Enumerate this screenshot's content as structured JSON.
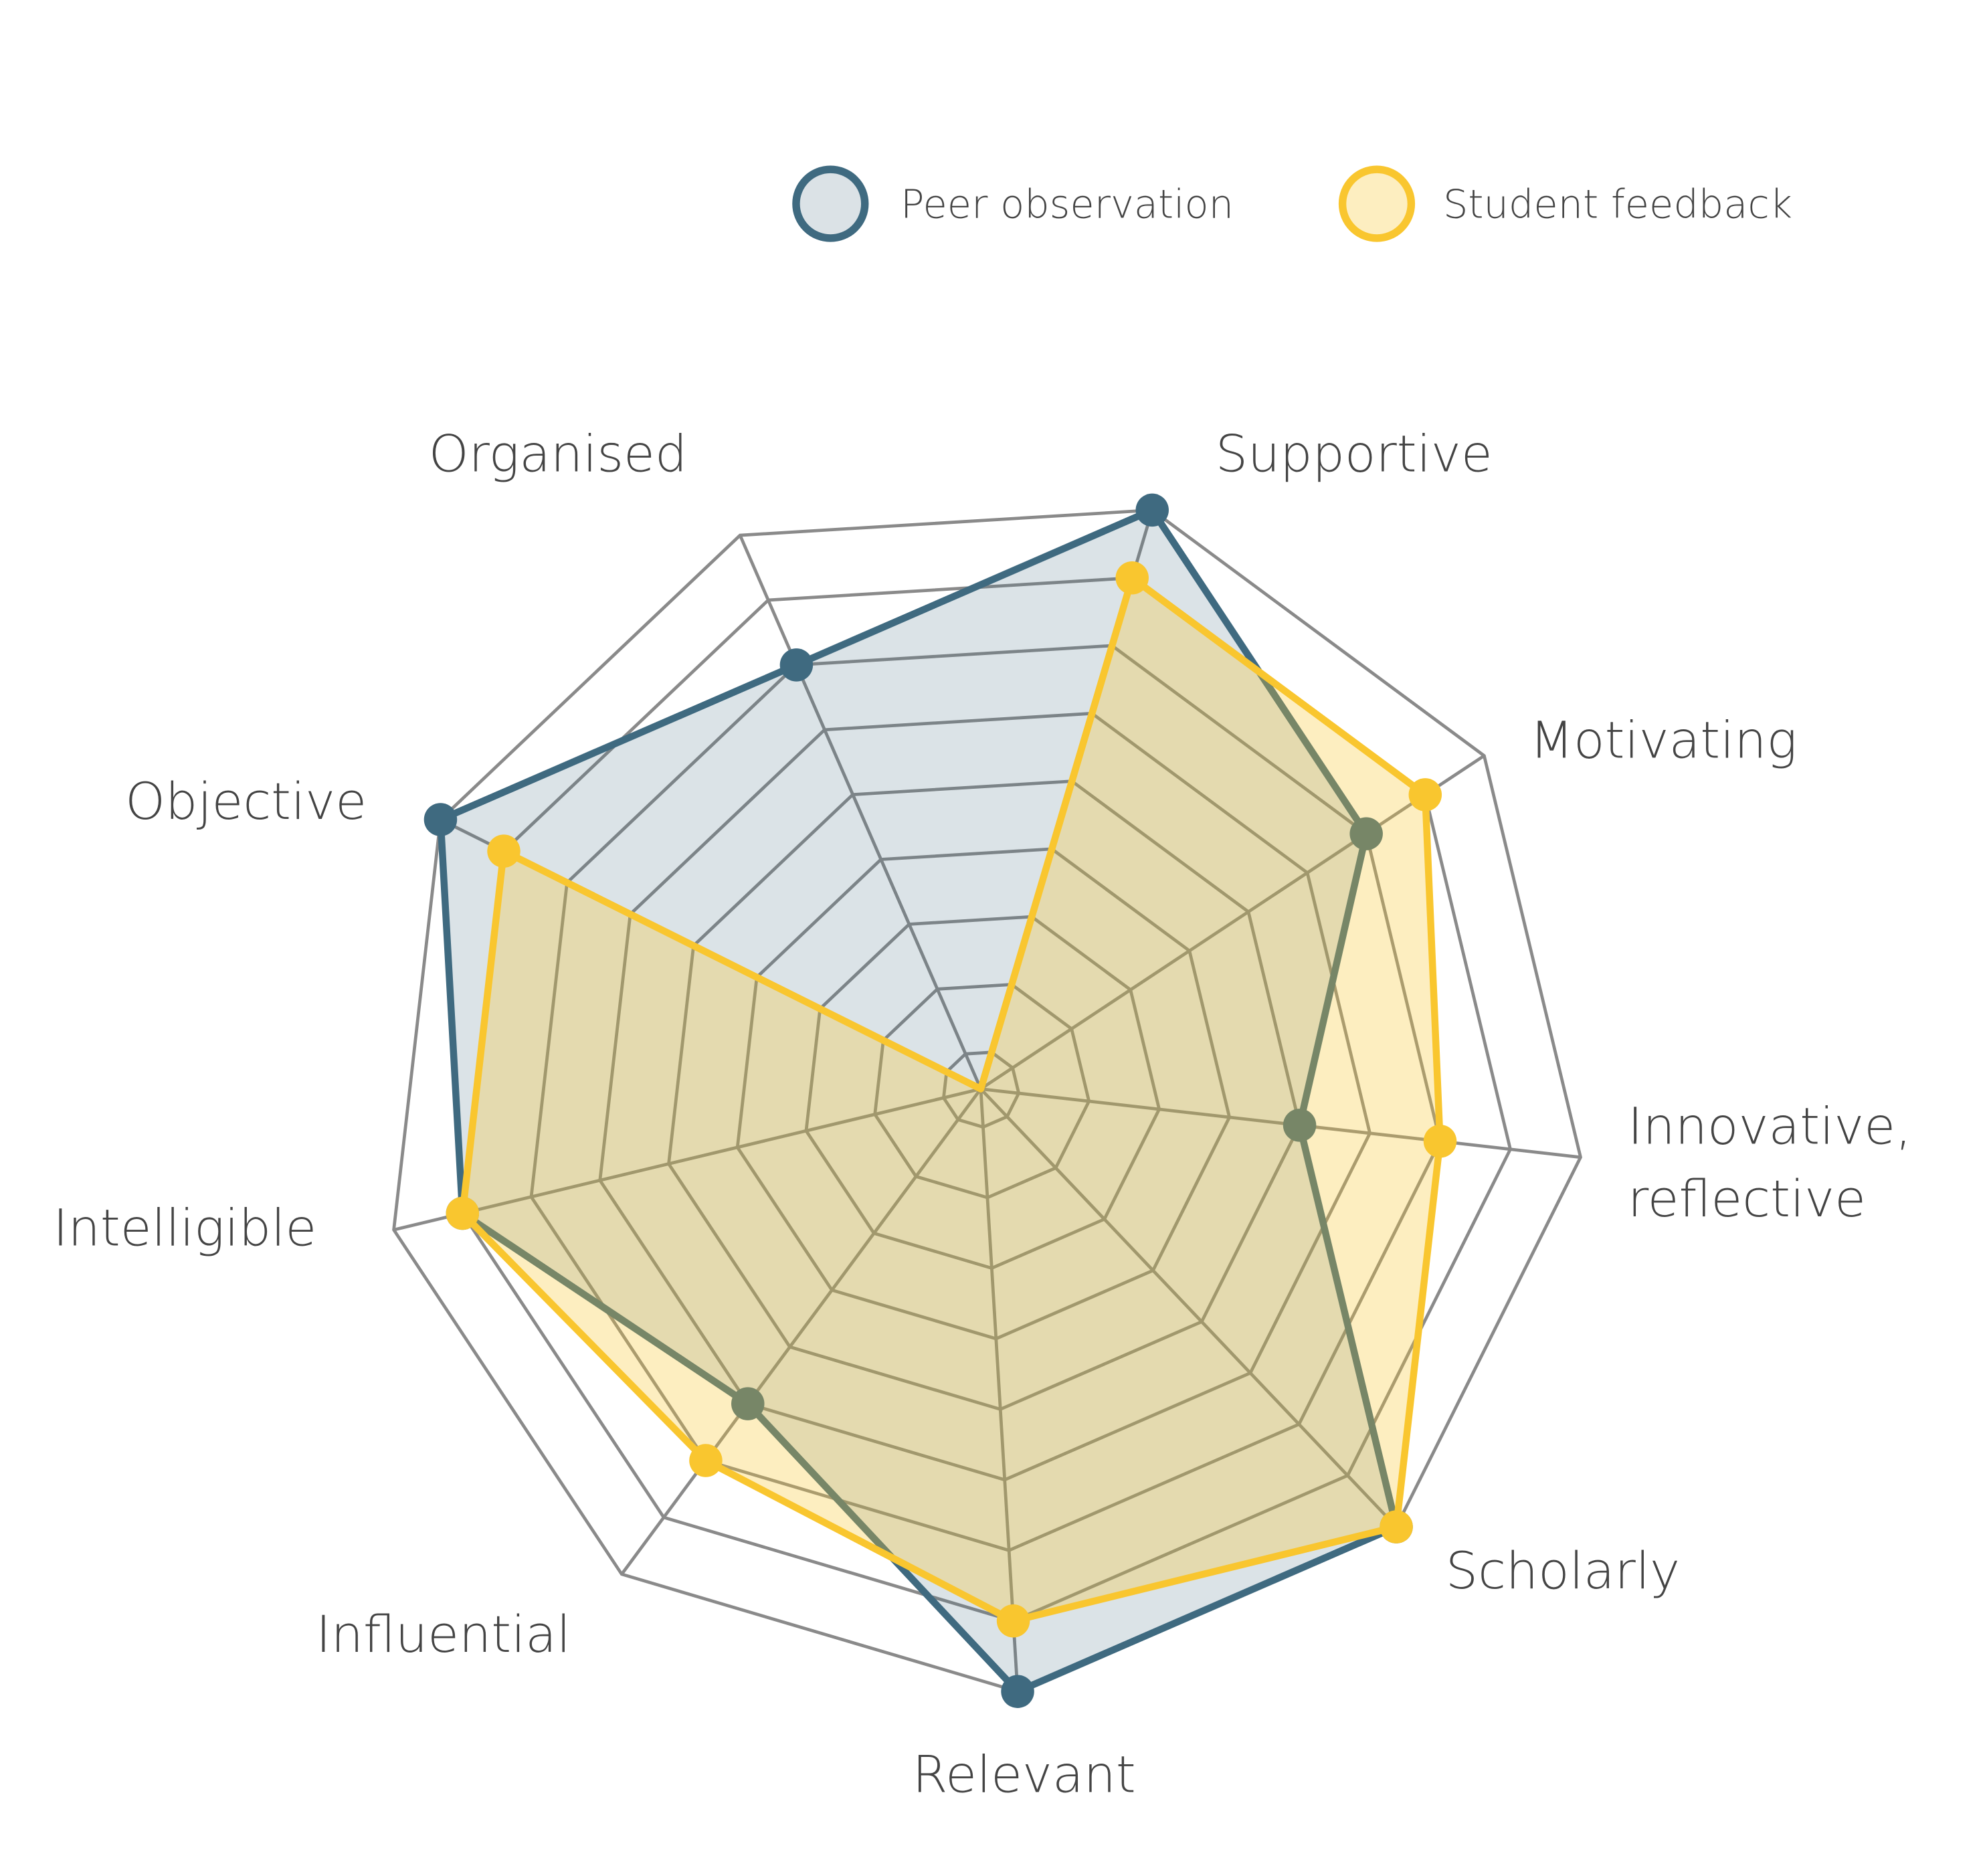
{
  "chart_data": {
    "type": "radar",
    "title": "",
    "categories": [
      "Supportive",
      "Motivating",
      "Innovative, reflective",
      "Scholarly",
      "Relevant",
      "Influential",
      "Intelligible",
      "Objective",
      "Organised"
    ],
    "grid_levels": [
      1,
      2,
      3,
      4,
      5,
      6,
      7,
      8,
      9
    ],
    "grid": true,
    "legend_position": "top-right",
    "series": [
      {
        "name": "Peer observation",
        "values": [
          9,
          7,
          5,
          9,
          9,
          6,
          8,
          9,
          7
        ],
        "stroke": "#3f6a80",
        "fill": "#3f6a80"
      },
      {
        "name": "Student feedback",
        "values": [
          8,
          8,
          7,
          9,
          8,
          7,
          8,
          8,
          0
        ],
        "stroke": "#f9c62f",
        "fill": "#f9c62f"
      }
    ]
  },
  "colors": {
    "grid": "#8a8a8a",
    "text": "#444444"
  }
}
